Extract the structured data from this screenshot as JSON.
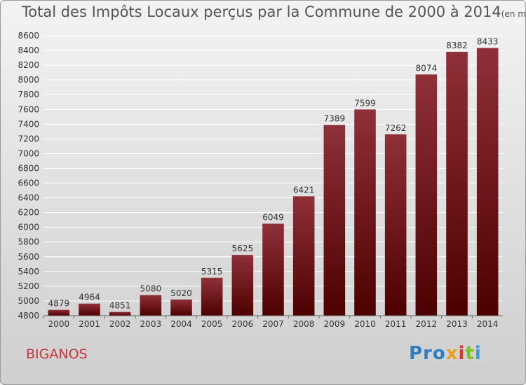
{
  "title": "Total des Impôts Locaux perçus par la Commune de 2000 à 2014",
  "title_unit": "(en milliers d'€)",
  "commune": "BIGANOS",
  "brand": [
    "Pro",
    "x",
    "i",
    "t",
    "i"
  ],
  "colors": {
    "bar_top": "#8f3039",
    "bar_bottom": "#4d0000",
    "grid": "#ffffff",
    "title": "#555555",
    "commune": "#c8343a"
  },
  "chart_data": {
    "type": "bar",
    "title": "Total des Impôts Locaux perçus par la Commune de 2000 à 2014",
    "ylabel": "en milliers d'€",
    "xlabel": "",
    "categories": [
      "2000",
      "2001",
      "2002",
      "2003",
      "2004",
      "2005",
      "2006",
      "2007",
      "2008",
      "2009",
      "2010",
      "2011",
      "2012",
      "2013",
      "2014"
    ],
    "values": [
      4879,
      4964,
      4851,
      5080,
      5020,
      5315,
      5625,
      6049,
      6421,
      7389,
      7599,
      7262,
      8074,
      8382,
      8433
    ],
    "ylim": [
      4800,
      8600
    ],
    "yticks": [
      4800,
      5000,
      5200,
      5400,
      5600,
      5800,
      6000,
      6200,
      6400,
      6600,
      6800,
      7000,
      7200,
      7400,
      7600,
      7800,
      8000,
      8200,
      8400,
      8600
    ],
    "grid": true
  }
}
